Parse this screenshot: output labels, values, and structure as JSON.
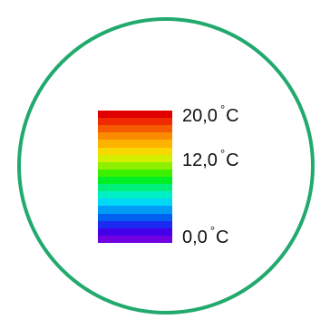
{
  "legend": {
    "labels": [
      {
        "value": "20,0",
        "degree": "°",
        "unit": "C"
      },
      {
        "value": "12,0",
        "degree": "°",
        "unit": "C"
      },
      {
        "value": "0,0",
        "degree": "°",
        "unit": "C"
      }
    ],
    "colors": [
      "#e00000",
      "#ef2a00",
      "#f55a00",
      "#fa8a00",
      "#fdb300",
      "#f7d800",
      "#d4f000",
      "#8ef000",
      "#3cf000",
      "#00ee25",
      "#00ef7a",
      "#00f0c5",
      "#00d8f5",
      "#009cf5",
      "#0060f0",
      "#1a2af0",
      "#4300e8",
      "#7000e0"
    ],
    "ring_color": "#22aa6e"
  }
}
